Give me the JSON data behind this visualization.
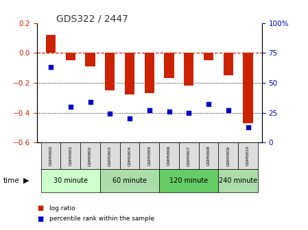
{
  "title": "GDS322 / 2447",
  "samples": [
    "GSM5800",
    "GSM5801",
    "GSM5802",
    "GSM5803",
    "GSM5804",
    "GSM5805",
    "GSM5806",
    "GSM5807",
    "GSM5808",
    "GSM5809",
    "GSM5810"
  ],
  "log_ratio": [
    0.12,
    -0.05,
    -0.09,
    -0.25,
    -0.28,
    -0.27,
    -0.17,
    -0.22,
    -0.05,
    -0.15,
    -0.47
  ],
  "percentile": [
    63,
    30,
    34,
    24,
    20,
    27,
    26,
    25,
    32,
    27,
    13
  ],
  "bar_color": "#cc2200",
  "dot_color": "#0000cc",
  "ref_line_color": "#cc2200",
  "ylim_left": [
    -0.6,
    0.2
  ],
  "ylim_right": [
    0,
    100
  ],
  "yticks_left": [
    -0.6,
    -0.4,
    -0.2,
    0.0,
    0.2
  ],
  "yticks_right": [
    0,
    25,
    50,
    75,
    100
  ],
  "groups": [
    {
      "label": "30 minute",
      "start": 0,
      "end": 2,
      "color": "#ccffcc"
    },
    {
      "label": "60 minute",
      "start": 3,
      "end": 5,
      "color": "#aaddaa"
    },
    {
      "label": "120 minute",
      "start": 6,
      "end": 8,
      "color": "#66cc66"
    },
    {
      "label": "240 minute",
      "start": 9,
      "end": 10,
      "color": "#aaddaa"
    }
  ],
  "time_label": "time",
  "legend_bar": "log ratio",
  "legend_dot": "percentile rank within the sample",
  "bg_color": "#ffffff",
  "dotted_lines": [
    -0.2,
    -0.4
  ],
  "bar_width": 0.5,
  "sample_box_color": "#dddddd",
  "group_colors": [
    "#ccffcc",
    "#aaddaa",
    "#66cc66",
    "#aaddaa"
  ]
}
